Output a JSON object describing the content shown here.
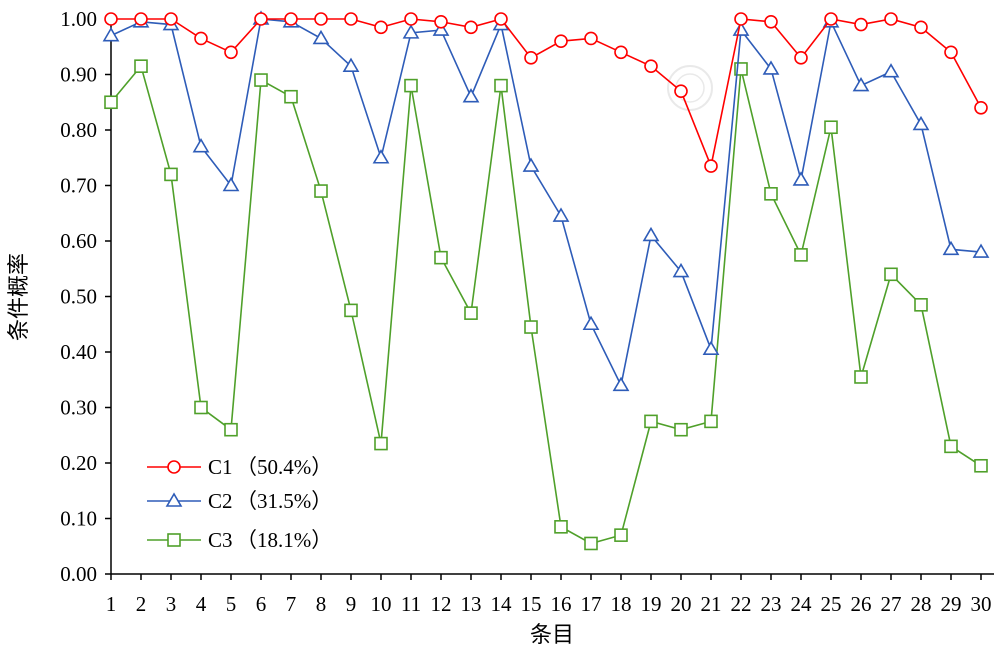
{
  "chart_data": {
    "type": "line",
    "x": [
      1,
      2,
      3,
      4,
      5,
      6,
      7,
      8,
      9,
      10,
      11,
      12,
      13,
      14,
      15,
      16,
      17,
      18,
      19,
      20,
      21,
      22,
      23,
      24,
      25,
      26,
      27,
      28,
      29,
      30
    ],
    "xlabel": "条目",
    "ylabel": "条件概率",
    "ylim": [
      0,
      1
    ],
    "y_ticks": [
      "0.00",
      "0.10",
      "0.20",
      "0.30",
      "0.40",
      "0.50",
      "0.60",
      "0.70",
      "0.80",
      "0.90",
      "1.00"
    ],
    "legend_position": "bottom-left",
    "grid": false,
    "series": [
      {
        "name": "C1",
        "share": "（50.4%）",
        "color": "#ff0000",
        "marker": "circle",
        "values": [
          1.0,
          1.0,
          1.0,
          0.965,
          0.94,
          1.0,
          1.0,
          1.0,
          1.0,
          0.985,
          1.0,
          0.995,
          0.985,
          1.0,
          0.93,
          0.96,
          0.965,
          0.94,
          0.915,
          0.87,
          0.735,
          1.0,
          0.995,
          0.93,
          1.0,
          0.99,
          1.0,
          0.985,
          0.94,
          0.84
        ]
      },
      {
        "name": "C2",
        "share": "（31.5%）",
        "color": "#2e5cb8",
        "marker": "triangle",
        "values": [
          0.97,
          0.995,
          0.99,
          0.77,
          0.7,
          1.0,
          0.995,
          0.965,
          0.915,
          0.75,
          0.975,
          0.98,
          0.86,
          0.99,
          0.735,
          0.645,
          0.45,
          0.34,
          0.61,
          0.545,
          0.405,
          0.98,
          0.91,
          0.71,
          0.995,
          0.88,
          0.905,
          0.81,
          0.585,
          0.58
        ]
      },
      {
        "name": "C3",
        "share": "（18.1%）",
        "color": "#4fa02a",
        "marker": "square",
        "values": [
          0.85,
          0.915,
          0.72,
          0.3,
          0.26,
          0.89,
          0.86,
          0.69,
          0.475,
          0.235,
          0.88,
          0.57,
          0.47,
          0.88,
          0.445,
          0.085,
          0.055,
          0.07,
          0.275,
          0.26,
          0.275,
          0.91,
          0.685,
          0.575,
          0.805,
          0.355,
          0.54,
          0.485,
          0.23,
          0.195
        ]
      }
    ]
  }
}
